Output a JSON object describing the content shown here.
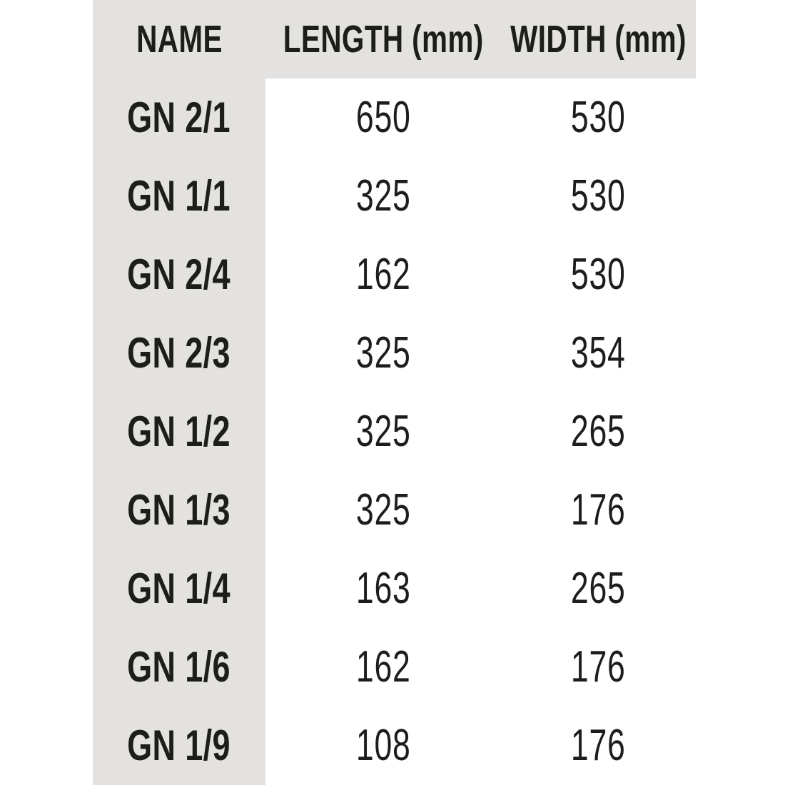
{
  "chart_data": {
    "type": "table",
    "columns": [
      "NAME",
      "LENGTH (mm)",
      "WIDTH (mm)"
    ],
    "rows": [
      [
        "GN 2/1",
        650,
        530
      ],
      [
        "GN 1/1",
        325,
        530
      ],
      [
        "GN 2/4",
        162,
        530
      ],
      [
        "GN 2/3",
        325,
        354
      ],
      [
        "GN 1/2",
        325,
        265
      ],
      [
        "GN 1/3",
        325,
        176
      ],
      [
        "GN 1/4",
        163,
        265
      ],
      [
        "GN 1/6",
        162,
        176
      ],
      [
        "GN 1/9",
        108,
        176
      ]
    ]
  },
  "colors": {
    "panel_bg": "#e3e2e0",
    "page_bg": "#ffffff",
    "text": "#1d1d1b"
  }
}
